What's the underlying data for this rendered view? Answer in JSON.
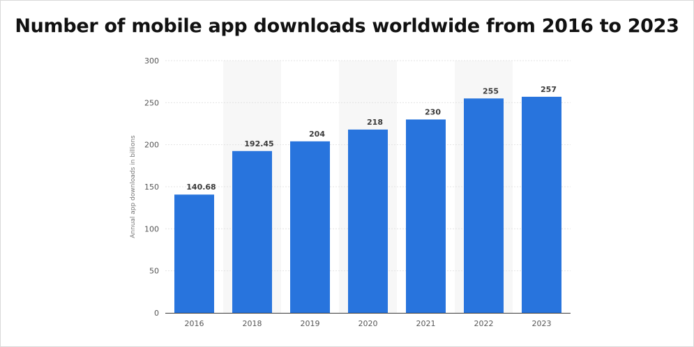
{
  "title": "Number of mobile app downloads worldwide from 2016 to 2023",
  "chart_data": {
    "type": "bar",
    "title": "Number of mobile app downloads worldwide from 2016 to 2023",
    "xlabel": "",
    "ylabel": "Annual app downloads in billions",
    "categories": [
      "2016",
      "2018",
      "2019",
      "2020",
      "2021",
      "2022",
      "2023"
    ],
    "values": [
      140.68,
      192.45,
      204,
      218,
      230,
      255,
      257
    ],
    "value_labels": [
      "140.68",
      "192.45",
      "204",
      "218",
      "230",
      "255",
      "257"
    ],
    "ylim": [
      0,
      300
    ],
    "yticks": [
      0,
      50,
      100,
      150,
      200,
      250,
      300
    ],
    "grid": true,
    "alternating_band_shading": true,
    "bar_color": "#2874dd",
    "band_color": "#f7f7f7",
    "grid_color": "#e3e3e3",
    "axis_color": "#3a3a3a",
    "tick_label_color": "#555555",
    "value_label_color": "#3a3a3a"
  }
}
